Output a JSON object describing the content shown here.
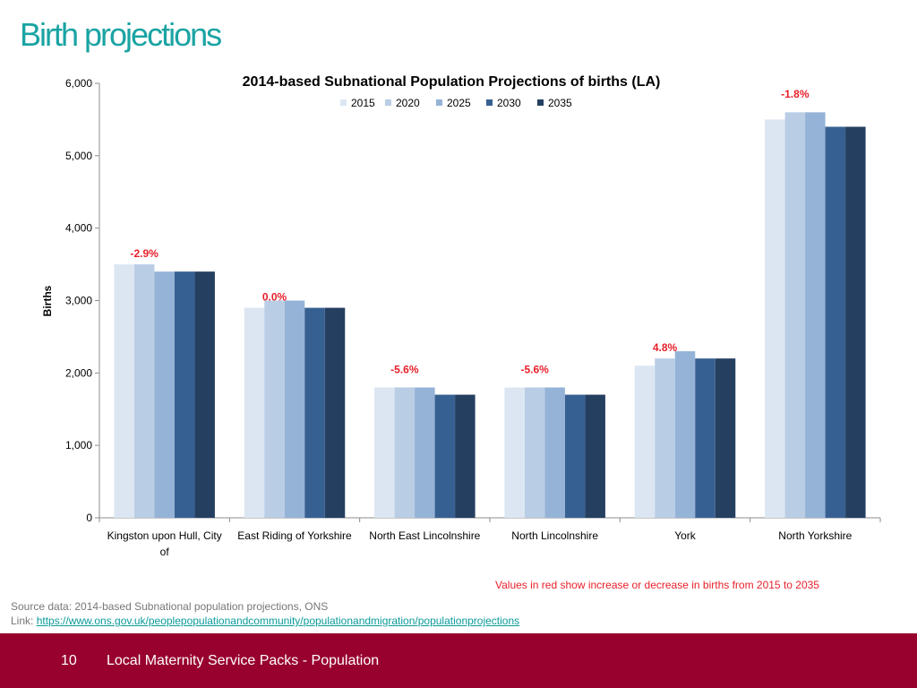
{
  "slide": {
    "title": "Birth projections",
    "note": "Values in red show increase or decrease in births from 2015 to 2035",
    "source_line": "Source data: 2014-based Subnational population projections, ONS",
    "link_prefix": "Link: ",
    "link_text": "https://www.ons.gov.uk/peoplepopulationandcommunity/populationandmigration/populationprojections",
    "footer_page": "10",
    "footer_text": "Local Maternity Service Packs - Population"
  },
  "colors": {
    "title": "#1aa3a3",
    "note": "#e8202a",
    "link": "#0b9a9a",
    "footer_bg": "#98002e",
    "change_label": "#e8202a",
    "axis": "#8c8c8c",
    "series": [
      "#dce6f2",
      "#b9cde5",
      "#95b3d7",
      "#376092",
      "#243f60"
    ]
  },
  "chart_data": {
    "type": "bar",
    "title": "2014-based Subnational Population Projections of births (LA)",
    "xlabel": "",
    "ylabel": "Births",
    "ylim": [
      0,
      6000
    ],
    "yticks": [
      0,
      1000,
      2000,
      3000,
      4000,
      5000,
      6000
    ],
    "ytick_labels": [
      "0",
      "1,000",
      "2,000",
      "3,000",
      "4,000",
      "5,000",
      "6,000"
    ],
    "grid": false,
    "legend_position": "top",
    "categories": [
      [
        "Kingston upon Hull, City",
        "of"
      ],
      [
        "East Riding of Yorkshire"
      ],
      [
        "North East Lincolnshire"
      ],
      [
        "North Lincolnshire"
      ],
      [
        "York"
      ],
      [
        "North Yorkshire"
      ]
    ],
    "series": [
      {
        "name": "2015",
        "values": [
          3500,
          2900,
          1800,
          1800,
          2100,
          5500
        ]
      },
      {
        "name": "2020",
        "values": [
          3500,
          3000,
          1800,
          1800,
          2200,
          5600
        ]
      },
      {
        "name": "2025",
        "values": [
          3400,
          3000,
          1800,
          1800,
          2300,
          5600
        ]
      },
      {
        "name": "2030",
        "values": [
          3400,
          2900,
          1700,
          1700,
          2200,
          5400
        ]
      },
      {
        "name": "2035",
        "values": [
          3400,
          2900,
          1700,
          1700,
          2200,
          5400
        ]
      }
    ],
    "annotations": [
      "-2.9%",
      "0.0%",
      "-5.6%",
      "-5.6%",
      "4.8%",
      "-1.8%"
    ],
    "annotation_anchor_values": [
      3600,
      3000,
      2000,
      2000,
      2300,
      5800
    ]
  }
}
